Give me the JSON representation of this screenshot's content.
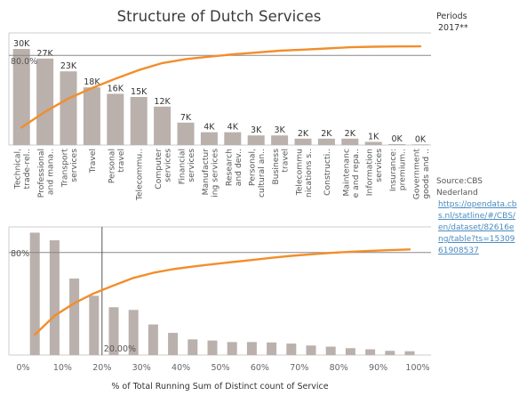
{
  "title": "Structure of Dutch Services",
  "filter": {
    "title": "Periods",
    "value": "2017**"
  },
  "source": {
    "label": "Source:CBS Nederland",
    "link": "https://opendata.cbs.nl/statline/#/CBS/en/dataset/82616eng/table?ts=1530961908537"
  },
  "colors": {
    "bar": "#bab0ac",
    "line": "#f28e2b",
    "reference": "#888888",
    "axis": "#cccccc"
  },
  "chart_data": [
    {
      "type": "bar",
      "categories": [
        "Technical, trade-rel..",
        "Professional and mana..",
        "Transport services",
        "Travel",
        "Personal travel",
        "Telecommu..",
        "Computer services",
        "Financial services",
        "Manufactur ing services",
        "Research and dev..",
        "Personal, cultural an..",
        "Business travel",
        "Telecommu nications s..",
        "Constructi..",
        "Maintenanc e and repa..",
        "Information services",
        "Insurance: premium..",
        "Government goods and .."
      ],
      "values": [
        30000,
        27000,
        23000,
        18000,
        16000,
        15000,
        12000,
        7000,
        4000,
        4000,
        3000,
        3000,
        2000,
        2000,
        2000,
        1000,
        300,
        200
      ],
      "value_labels": [
        "30K",
        "27K",
        "23K",
        "18K",
        "16K",
        "15K",
        "12K",
        "7K",
        "4K",
        "4K",
        "3K",
        "3K",
        "2K",
        "2K",
        "2K",
        "1K",
        "0K",
        "0K"
      ],
      "running_pct": [
        15.6,
        29.6,
        41.5,
        50.8,
        59.1,
        66.9,
        73.1,
        76.7,
        78.8,
        80.9,
        82.5,
        84.1,
        85.1,
        86.1,
        87.2,
        87.7,
        87.9,
        88.0
      ],
      "reference_line": {
        "value": 80,
        "label": "80.0%"
      },
      "ylim": [
        0,
        35000
      ]
    },
    {
      "type": "bar",
      "xlabel": "% of Total Running Sum of Distinct count of Service",
      "x_ticks": [
        "0%",
        "10%",
        "20%",
        "30%",
        "40%",
        "50%",
        "60%",
        "70%",
        "80%",
        "90%",
        "100%"
      ],
      "x": [
        5,
        10,
        15,
        20,
        25,
        30,
        35,
        40,
        45,
        50,
        55,
        60,
        65,
        70,
        75,
        80,
        85,
        90,
        95,
        100
      ],
      "values": [
        32000,
        30000,
        20000,
        15500,
        12500,
        11800,
        8000,
        5800,
        4100,
        3800,
        3400,
        3400,
        3300,
        3000,
        2500,
        2200,
        1800,
        1500,
        1100,
        1000
      ],
      "running_pct": [
        15.9,
        30.7,
        40.5,
        48.2,
        54.4,
        60.2,
        64.2,
        67.0,
        69.0,
        70.9,
        72.6,
        74.2,
        75.9,
        77.4,
        78.6,
        79.7,
        80.6,
        81.3,
        81.9,
        82.4
      ],
      "reference_lines": [
        {
          "axis": "y",
          "value": 80,
          "label": "80%"
        },
        {
          "axis": "x",
          "value": 20,
          "label": "20.00%"
        }
      ],
      "xlim": [
        -2.5,
        104
      ],
      "ylim": [
        0,
        33500
      ]
    }
  ]
}
